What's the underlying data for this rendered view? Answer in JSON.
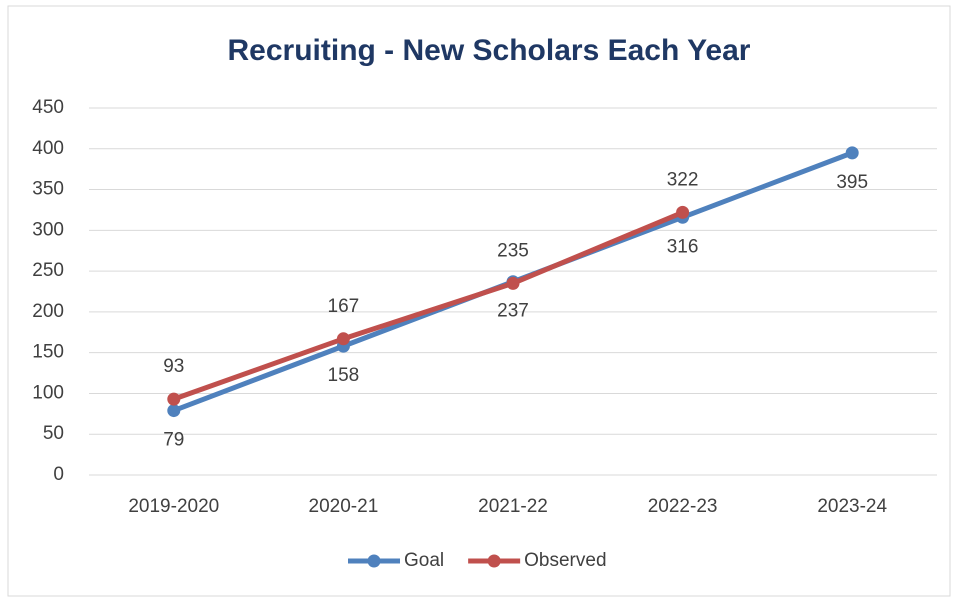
{
  "chart_data": {
    "type": "line",
    "title": "Recruiting - New Scholars Each Year",
    "categories": [
      "2019-2020",
      "2020-21",
      "2021-22",
      "2022-23",
      "2023-24"
    ],
    "series": [
      {
        "name": "Goal",
        "color": "#4f81bd",
        "values": [
          79,
          158,
          237,
          316,
          395
        ],
        "label_position": "below"
      },
      {
        "name": "Observed",
        "color": "#c0504d",
        "values": [
          93,
          167,
          235,
          322,
          null
        ],
        "label_position": "above"
      }
    ],
    "ylim": [
      0,
      450
    ],
    "yticks": [
      0,
      50,
      100,
      150,
      200,
      250,
      300,
      350,
      400,
      450
    ],
    "grid": true,
    "legend": "bottom"
  }
}
